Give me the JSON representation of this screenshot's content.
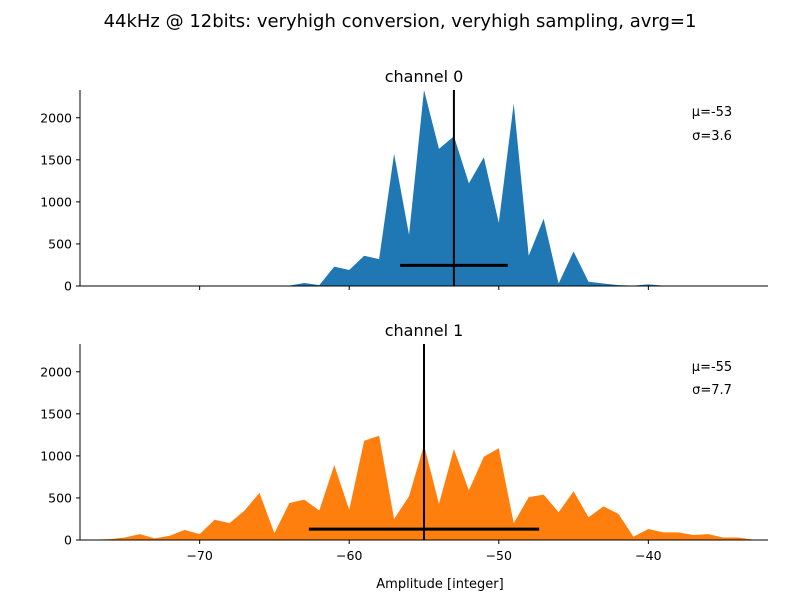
{
  "figure": {
    "suptitle": "44kHz @ 12bits: veryhigh conversion, veryhigh sampling, avrg=1",
    "xlabel": "Amplitude [integer]"
  },
  "chart_data": [
    {
      "type": "area",
      "title": "channel 0",
      "color": "#1f77b4",
      "xlim": [
        -78,
        -32
      ],
      "ylim": [
        0,
        2330
      ],
      "xticks": [
        -70,
        -60,
        -50,
        -40
      ],
      "yticks": [
        0,
        500,
        1000,
        1500,
        2000
      ],
      "show_xtick_labels": false,
      "mean": -53,
      "std": 3.6,
      "mu_label": "μ=-53",
      "sigma_label": "σ=3.6",
      "errorbar_y": 245,
      "x": [
        -78,
        -77,
        -76,
        -75,
        -74,
        -73,
        -72,
        -71,
        -70,
        -69,
        -68,
        -67,
        -66,
        -65,
        -64,
        -63,
        -62,
        -61,
        -60,
        -59,
        -58,
        -57,
        -56,
        -55,
        -54,
        -53,
        -52,
        -51,
        -50,
        -49,
        -48,
        -47,
        -46,
        -45,
        -44,
        -43,
        -42,
        -41,
        -40,
        -39,
        -38,
        -37,
        -36,
        -35,
        -34,
        -33,
        -32
      ],
      "y": [
        0,
        0,
        0,
        0,
        0,
        0,
        0,
        0,
        0,
        0,
        0,
        0,
        0,
        2,
        5,
        35,
        10,
        230,
        190,
        360,
        320,
        1570,
        610,
        2330,
        1630,
        1780,
        1220,
        1530,
        750,
        2170,
        360,
        800,
        30,
        410,
        50,
        30,
        10,
        5,
        20,
        5,
        0,
        0,
        0,
        0,
        0,
        0,
        0
      ]
    },
    {
      "type": "area",
      "title": "channel 1",
      "color": "#ff7f0e",
      "xlim": [
        -78,
        -32
      ],
      "ylim": [
        0,
        2330
      ],
      "xticks": [
        -70,
        -60,
        -50,
        -40
      ],
      "xtick_labels": [
        "−70",
        "−60",
        "−50",
        "−40"
      ],
      "yticks": [
        0,
        500,
        1000,
        1500,
        2000
      ],
      "show_xtick_labels": true,
      "mean": -55,
      "std": 7.7,
      "mu_label": "μ=-55",
      "sigma_label": "σ=7.7",
      "errorbar_y": 130,
      "x": [
        -78,
        -77,
        -76,
        -75,
        -74,
        -73,
        -72,
        -71,
        -70,
        -69,
        -68,
        -67,
        -66,
        -65,
        -64,
        -63,
        -62,
        -61,
        -60,
        -59,
        -58,
        -57,
        -56,
        -55,
        -54,
        -53,
        -52,
        -51,
        -50,
        -49,
        -48,
        -47,
        -46,
        -45,
        -44,
        -43,
        -42,
        -41,
        -40,
        -39,
        -38,
        -37,
        -36,
        -35,
        -34,
        -33,
        -32
      ],
      "y": [
        0,
        5,
        10,
        30,
        70,
        20,
        50,
        120,
        70,
        240,
        200,
        350,
        560,
        80,
        440,
        480,
        350,
        890,
        360,
        1180,
        1240,
        250,
        520,
        1130,
        430,
        1080,
        590,
        990,
        1090,
        200,
        510,
        540,
        330,
        580,
        270,
        400,
        310,
        40,
        130,
        90,
        90,
        60,
        70,
        30,
        30,
        5,
        5
      ]
    }
  ]
}
